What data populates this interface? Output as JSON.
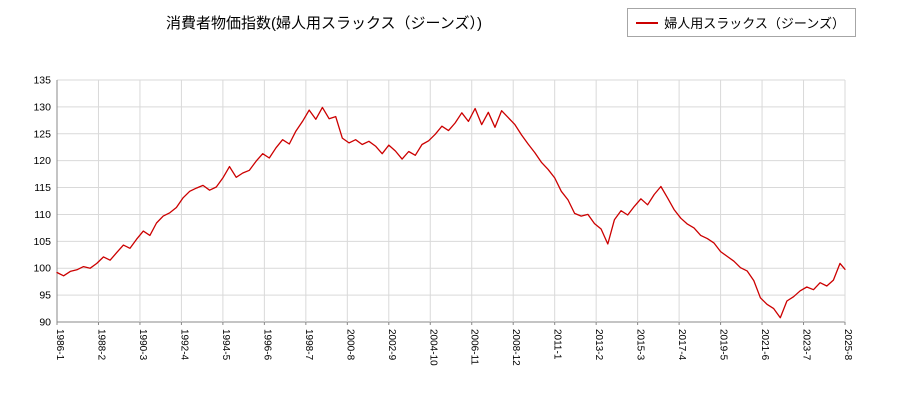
{
  "title": "消費者物価指数(婦人用スラックス（ジーンズ）)",
  "legend": {
    "label": "婦人用スラックス（ジーンズ）",
    "line_color": "#cc0000"
  },
  "colors": {
    "line": "#cc0000",
    "grid": "#d9d9d9",
    "axis": "#888888",
    "tick_text": "#000000"
  },
  "chart_data": {
    "type": "line",
    "title": "消費者物価指数(婦人用スラックス（ジーンズ）)",
    "series_name": "婦人用スラックス（ジーンズ）",
    "x_unit": "months since 1986-1",
    "x_max": 475,
    "ylim": [
      90,
      135
    ],
    "grid": true,
    "legend_position": "top-right",
    "y_ticks": [
      90,
      95,
      100,
      105,
      110,
      115,
      120,
      125,
      130,
      135
    ],
    "x_ticks": [
      {
        "m": 0,
        "label": "1986-1"
      },
      {
        "m": 25,
        "label": "1988-2"
      },
      {
        "m": 50,
        "label": "1990-3"
      },
      {
        "m": 75,
        "label": "1992-4"
      },
      {
        "m": 100,
        "label": "1994-5"
      },
      {
        "m": 125,
        "label": "1996-6"
      },
      {
        "m": 150,
        "label": "1998-7"
      },
      {
        "m": 175,
        "label": "2000-8"
      },
      {
        "m": 200,
        "label": "2002-9"
      },
      {
        "m": 225,
        "label": "2004-10"
      },
      {
        "m": 250,
        "label": "2006-11"
      },
      {
        "m": 275,
        "label": "2008-12"
      },
      {
        "m": 300,
        "label": "2011-1"
      },
      {
        "m": 325,
        "label": "2013-2"
      },
      {
        "m": 350,
        "label": "2015-3"
      },
      {
        "m": 375,
        "label": "2017-4"
      },
      {
        "m": 400,
        "label": "2019-5"
      },
      {
        "m": 425,
        "label": "2021-6"
      },
      {
        "m": 450,
        "label": "2023-7"
      },
      {
        "m": 475,
        "label": "2025-8"
      }
    ],
    "points": [
      [
        0,
        99.2
      ],
      [
        4,
        98.6
      ],
      [
        8,
        99.4
      ],
      [
        12,
        99.7
      ],
      [
        16,
        100.3
      ],
      [
        20,
        100.0
      ],
      [
        24,
        100.9
      ],
      [
        28,
        102.1
      ],
      [
        32,
        101.5
      ],
      [
        36,
        102.9
      ],
      [
        40,
        104.3
      ],
      [
        44,
        103.7
      ],
      [
        48,
        105.4
      ],
      [
        52,
        106.9
      ],
      [
        56,
        106.1
      ],
      [
        60,
        108.4
      ],
      [
        64,
        109.7
      ],
      [
        68,
        110.3
      ],
      [
        72,
        111.3
      ],
      [
        76,
        113.1
      ],
      [
        80,
        114.3
      ],
      [
        84,
        114.9
      ],
      [
        88,
        115.4
      ],
      [
        92,
        114.5
      ],
      [
        96,
        115.1
      ],
      [
        100,
        116.8
      ],
      [
        104,
        118.9
      ],
      [
        108,
        116.9
      ],
      [
        112,
        117.7
      ],
      [
        116,
        118.2
      ],
      [
        120,
        119.9
      ],
      [
        124,
        121.3
      ],
      [
        128,
        120.5
      ],
      [
        132,
        122.4
      ],
      [
        136,
        123.9
      ],
      [
        140,
        123.1
      ],
      [
        144,
        125.5
      ],
      [
        148,
        127.3
      ],
      [
        152,
        129.4
      ],
      [
        156,
        127.7
      ],
      [
        160,
        129.9
      ],
      [
        164,
        127.8
      ],
      [
        168,
        128.2
      ],
      [
        172,
        124.2
      ],
      [
        176,
        123.3
      ],
      [
        180,
        123.9
      ],
      [
        184,
        123.0
      ],
      [
        188,
        123.6
      ],
      [
        192,
        122.7
      ],
      [
        196,
        121.3
      ],
      [
        200,
        122.9
      ],
      [
        204,
        121.8
      ],
      [
        208,
        120.3
      ],
      [
        212,
        121.7
      ],
      [
        216,
        121.0
      ],
      [
        220,
        123.0
      ],
      [
        224,
        123.7
      ],
      [
        228,
        124.9
      ],
      [
        232,
        126.4
      ],
      [
        236,
        125.6
      ],
      [
        240,
        127.0
      ],
      [
        244,
        128.9
      ],
      [
        248,
        127.3
      ],
      [
        252,
        129.7
      ],
      [
        256,
        126.7
      ],
      [
        260,
        129.0
      ],
      [
        264,
        126.2
      ],
      [
        268,
        129.3
      ],
      [
        272,
        128.0
      ],
      [
        276,
        126.7
      ],
      [
        280,
        124.8
      ],
      [
        284,
        123.1
      ],
      [
        288,
        121.5
      ],
      [
        292,
        119.7
      ],
      [
        296,
        118.4
      ],
      [
        300,
        116.8
      ],
      [
        304,
        114.3
      ],
      [
        308,
        112.7
      ],
      [
        312,
        110.2
      ],
      [
        316,
        109.7
      ],
      [
        320,
        110.0
      ],
      [
        324,
        108.3
      ],
      [
        328,
        107.3
      ],
      [
        332,
        104.5
      ],
      [
        336,
        109.0
      ],
      [
        340,
        110.7
      ],
      [
        344,
        109.9
      ],
      [
        348,
        111.5
      ],
      [
        352,
        112.9
      ],
      [
        356,
        111.8
      ],
      [
        360,
        113.7
      ],
      [
        364,
        115.2
      ],
      [
        368,
        113.1
      ],
      [
        372,
        110.9
      ],
      [
        376,
        109.3
      ],
      [
        380,
        108.2
      ],
      [
        384,
        107.5
      ],
      [
        388,
        106.1
      ],
      [
        392,
        105.5
      ],
      [
        396,
        104.7
      ],
      [
        400,
        103.1
      ],
      [
        404,
        102.2
      ],
      [
        408,
        101.3
      ],
      [
        412,
        100.1
      ],
      [
        416,
        99.5
      ],
      [
        420,
        97.7
      ],
      [
        424,
        94.5
      ],
      [
        428,
        93.3
      ],
      [
        432,
        92.5
      ],
      [
        436,
        90.8
      ],
      [
        440,
        93.9
      ],
      [
        444,
        94.7
      ],
      [
        448,
        95.8
      ],
      [
        452,
        96.5
      ],
      [
        456,
        96.0
      ],
      [
        460,
        97.3
      ],
      [
        464,
        96.7
      ],
      [
        468,
        97.8
      ],
      [
        472,
        100.9
      ],
      [
        475,
        99.8
      ]
    ]
  }
}
